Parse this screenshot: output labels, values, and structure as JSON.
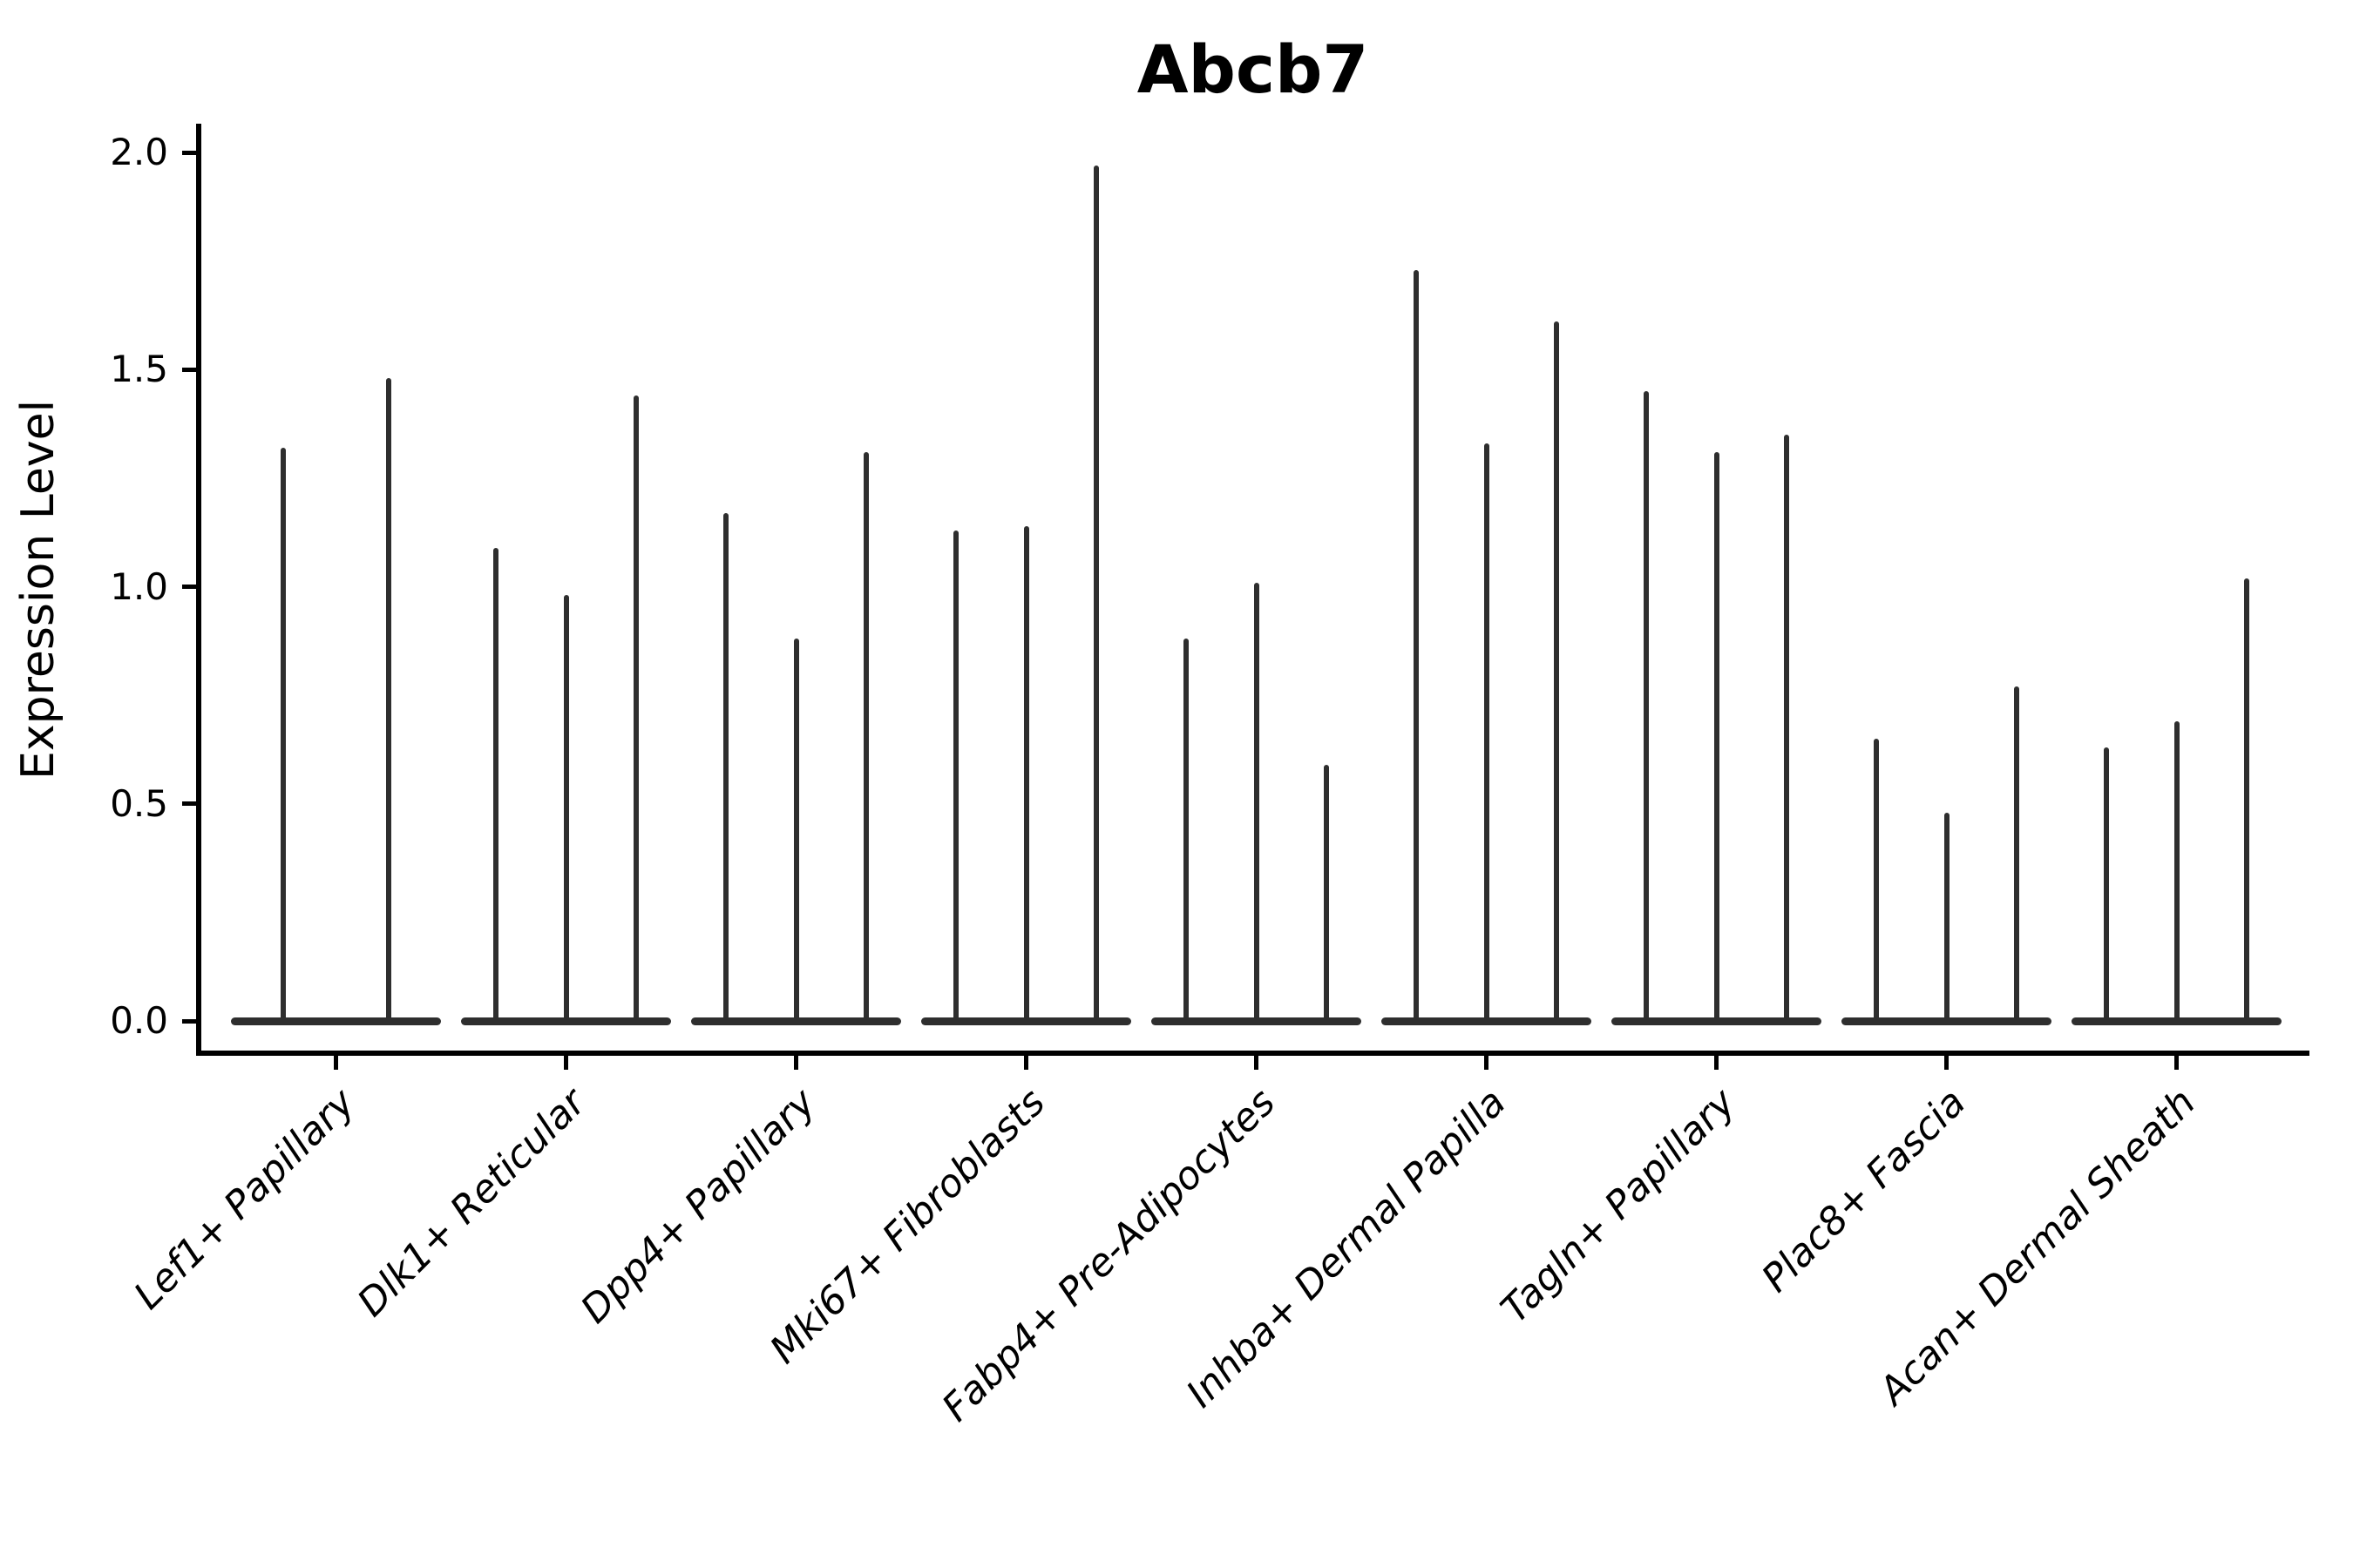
{
  "title": "Abcb7",
  "ylabel": "Expression Level",
  "chart_data": {
    "type": "violin",
    "title": "Abcb7",
    "xlabel": "",
    "ylabel": "Expression Level",
    "ylim": [
      -0.07,
      2.07
    ],
    "yticks": [
      0.0,
      0.5,
      1.0,
      1.5,
      2.0
    ],
    "ytick_labels": [
      "0.0",
      "0.5",
      "1.0",
      "1.5",
      "2.0"
    ],
    "grid": false,
    "legend": "none",
    "ink_color": "#2e2e2e",
    "axis_color": "#000000",
    "background": "#ffffff",
    "categories": [
      "Lef1+ Papillary",
      "Dlk1+ Reticular",
      "Dpp4+ Papillary",
      "Mki67+ Fibroblasts",
      "Fabp4+ Pre-Adipocytes",
      "Inhba+ Dermal Papilla",
      "Tagln+ Papillary",
      "Plac8+ Fascia",
      "Acan+ Dermal Sheath"
    ],
    "groups": [
      {
        "category": "Lef1+ Papillary",
        "violin_max_expression": [
          1.32,
          1.48
        ]
      },
      {
        "category": "Dlk1+ Reticular",
        "violin_max_expression": [
          1.09,
          0.98,
          1.44
        ]
      },
      {
        "category": "Dpp4+ Papillary",
        "violin_max_expression": [
          1.17,
          0.88,
          1.31
        ]
      },
      {
        "category": "Mki67+ Fibroblasts",
        "violin_max_expression": [
          1.13,
          1.14,
          1.97
        ]
      },
      {
        "category": "Fabp4+ Pre-Adipocytes",
        "violin_max_expression": [
          0.88,
          1.01,
          0.59
        ]
      },
      {
        "category": "Inhba+ Dermal Papilla",
        "violin_max_expression": [
          1.73,
          1.33,
          1.61
        ]
      },
      {
        "category": "Tagln+ Papillary",
        "violin_max_expression": [
          1.45,
          1.31,
          1.35
        ]
      },
      {
        "category": "Plac8+ Fascia",
        "violin_max_expression": [
          0.65,
          0.48,
          0.77
        ]
      },
      {
        "category": "Acan+ Dermal Sheath",
        "violin_max_expression": [
          0.63,
          0.69,
          1.02
        ]
      }
    ]
  }
}
